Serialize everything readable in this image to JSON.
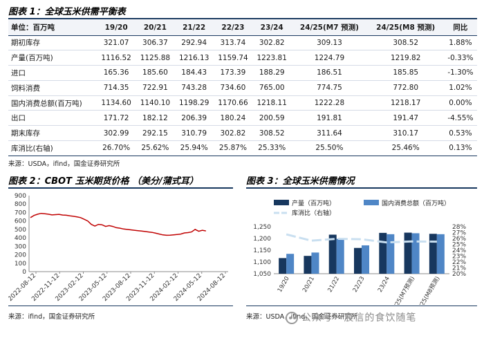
{
  "table1": {
    "title": "图表 1：全球玉米供需平衡表",
    "headers": [
      "单位：百万吨",
      "19/20",
      "20/21",
      "21/22",
      "22/23",
      "23/24",
      "24/25(M7 预测)",
      "24/25(M8 预测)",
      "同比"
    ],
    "rows": [
      [
        "期初库存",
        "321.07",
        "306.37",
        "292.94",
        "313.74",
        "302.82",
        "309.13",
        "308.52",
        "1.88%"
      ],
      [
        "产量(百万吨)",
        "1116.52",
        "1125.88",
        "1216.13",
        "1159.74",
        "1223.81",
        "1224.79",
        "1219.82",
        "-0.33%"
      ],
      [
        "进口",
        "165.36",
        "185.60",
        "184.43",
        "173.39",
        "188.29",
        "186.51",
        "185.85",
        "-1.30%"
      ],
      [
        "饲料消费",
        "714.35",
        "722.91",
        "743.28",
        "734.60",
        "765.00",
        "774.75",
        "772.80",
        "1.02%"
      ],
      [
        "国内消费总额(百万吨)",
        "1134.60",
        "1140.10",
        "1198.29",
        "1170.66",
        "1218.11",
        "1222.28",
        "1218.17",
        "0.00%"
      ],
      [
        "出口",
        "171.72",
        "182.12",
        "206.39",
        "180.24",
        "200.59",
        "191.81",
        "191.47",
        "-4.55%"
      ],
      [
        "期末库存",
        "302.99",
        "292.15",
        "310.79",
        "302.82",
        "308.52",
        "311.64",
        "310.17",
        "0.53%"
      ],
      [
        "库消比(右轴)",
        "26.70%",
        "25.62%",
        "25.94%",
        "25.87%",
        "25.33%",
        "25.50%",
        "25.46%",
        "0.13%"
      ]
    ],
    "source": "来源：USDA，ifind，国金证券研究所"
  },
  "figure2": {
    "title": "图表 2：CBOT 玉米期货价格 （美分/蒲式耳）",
    "source": "来源：ifind，国金证券研究所"
  },
  "figure3": {
    "title": "图表 3：全球玉米供需情况",
    "source": "来源：USDA，ifind，国金证券研究所"
  },
  "watermark": "公众号 · 宸信的食饮随笔",
  "chart_data": [
    {
      "type": "line",
      "title": "CBOT 玉米期货价格 （美分/蒲式耳）",
      "x_ticks": [
        "2022-08-12",
        "2022-11-12",
        "2023-02-12",
        "2023-05-12",
        "2023-08-12",
        "2023-11-12",
        "2024-02-12",
        "2024-05-12",
        "2024-08-12"
      ],
      "ylim": [
        0,
        900
      ],
      "y_ticks": [
        0,
        100,
        200,
        300,
        400,
        500,
        600,
        700,
        800,
        900
      ],
      "color": "#c00000",
      "series": [
        {
          "values": [
            640,
            665,
            680,
            690,
            685,
            680,
            672,
            675,
            678,
            670,
            668,
            660,
            655,
            648,
            640,
            620,
            600,
            560,
            540,
            560,
            555,
            535,
            545,
            535,
            520,
            515,
            505,
            500,
            495,
            490,
            485,
            480,
            475,
            470,
            465,
            455,
            445,
            435,
            430,
            432,
            436,
            440,
            445,
            458,
            462,
            470,
            500,
            478,
            490,
            482
          ]
        }
      ]
    },
    {
      "type": "bar",
      "title": "全球玉米供需情况",
      "categories": [
        "19/20",
        "20/21",
        "21/22",
        "22/23",
        "23/24",
        "24/25(M7预测)",
        "24/25(M8预测)"
      ],
      "ylim": [
        1050,
        1250
      ],
      "y_ticks": [
        1050,
        1100,
        1150,
        1200,
        1250
      ],
      "y2lim": [
        0.2,
        0.28
      ],
      "y2_ticks": [
        "20%",
        "21%",
        "22%",
        "23%",
        "24%",
        "25%",
        "26%",
        "27%",
        "28%"
      ],
      "series": [
        {
          "name": "产量（百万吨）",
          "values": [
            1116.52,
            1125.88,
            1216.13,
            1159.74,
            1223.81,
            1224.79,
            1219.82
          ],
          "color": "#17375e"
        },
        {
          "name": "国内消费总额（百万吨）",
          "values": [
            1134.6,
            1140.1,
            1198.29,
            1170.66,
            1218.11,
            1222.28,
            1218.17
          ],
          "color": "#4f86c6"
        },
        {
          "name": "库消比（右轴）",
          "values": [
            0.267,
            0.2562,
            0.2594,
            0.2587,
            0.2533,
            0.255,
            0.2546
          ],
          "color": "#c9dff0",
          "axis": "right"
        }
      ]
    }
  ]
}
